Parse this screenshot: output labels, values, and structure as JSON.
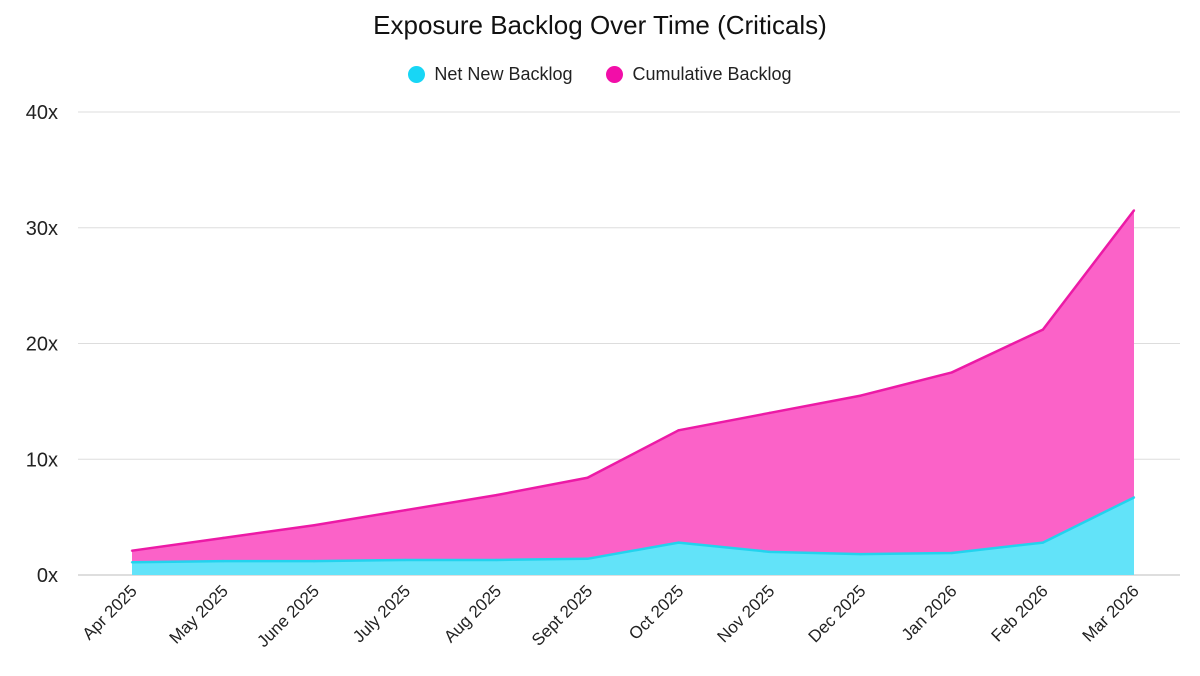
{
  "chart_data": {
    "type": "area",
    "title": "Exposure Backlog Over Time (Criticals)",
    "xlabel": "",
    "ylabel": "",
    "categories": [
      "Apr 2025",
      "May 2025",
      "June 2025",
      "July 2025",
      "Aug 2025",
      "Sept 2025",
      "Oct 2025",
      "Nov 2025",
      "Dec 2025",
      "Jan 2026",
      "Feb 2026",
      "Mar 2026"
    ],
    "y_ticks": [
      "0x",
      "10x",
      "20x",
      "30x",
      "40x"
    ],
    "ylim": [
      0,
      40
    ],
    "grid": true,
    "legend_position": "top-center",
    "series": [
      {
        "name": "Cumulative Backlog",
        "color": "#fb62c8",
        "line_color": "#ec1aa6",
        "values": [
          2.1,
          3.2,
          4.3,
          5.6,
          6.9,
          8.4,
          12.5,
          14.0,
          15.5,
          17.5,
          21.2,
          31.5
        ]
      },
      {
        "name": "Net New Backlog",
        "color": "#62e3f9",
        "line_color": "#22d3ee",
        "values": [
          1.1,
          1.2,
          1.2,
          1.3,
          1.3,
          1.4,
          2.8,
          2.0,
          1.8,
          1.9,
          2.8,
          6.7
        ]
      }
    ],
    "legend": [
      {
        "label": "Net New Backlog",
        "color": "#18d6f5"
      },
      {
        "label": "Cumulative Backlog",
        "color": "#f20ea8"
      }
    ]
  }
}
